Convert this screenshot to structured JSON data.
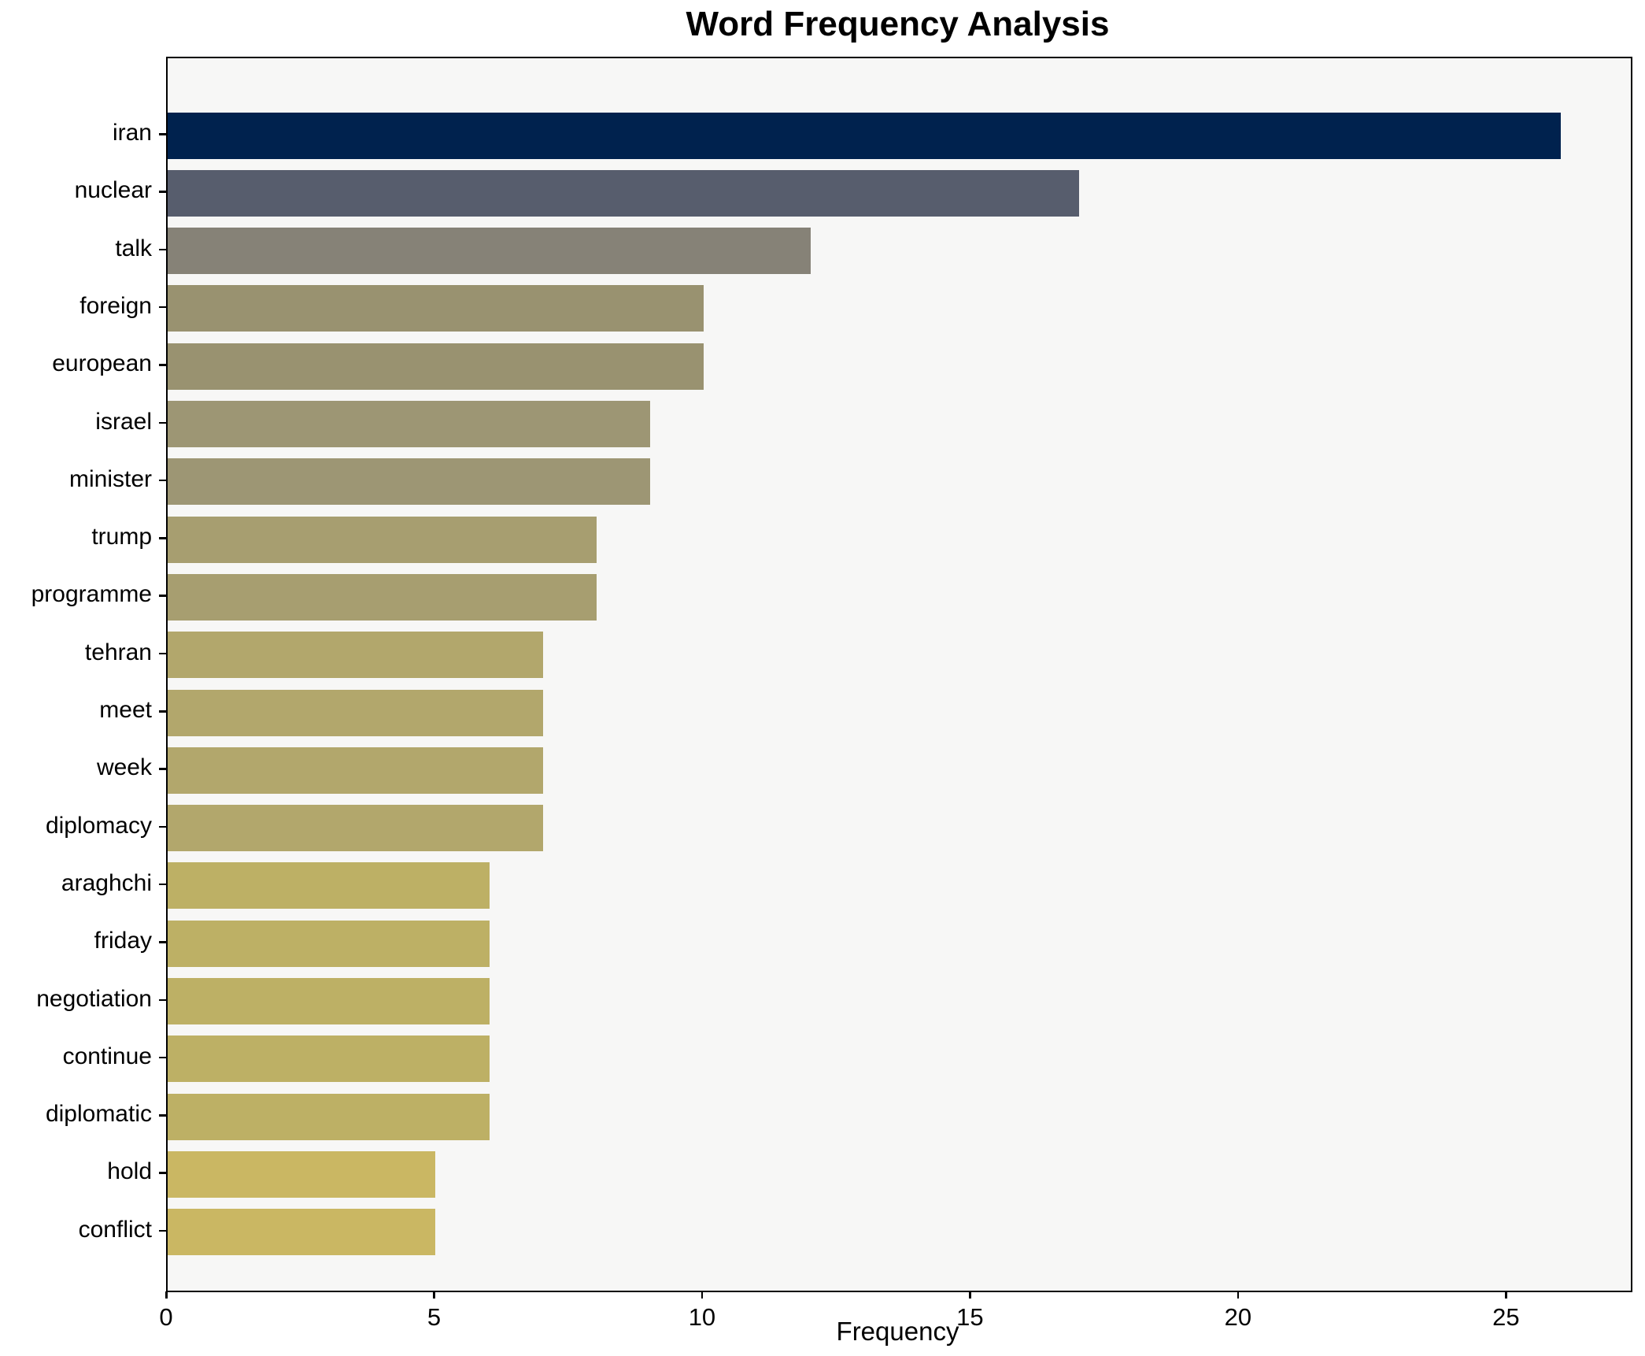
{
  "chart_data": {
    "type": "bar",
    "orientation": "horizontal",
    "title": "Word Frequency Analysis",
    "xlabel": "Frequency",
    "ylabel": "",
    "categories": [
      "iran",
      "nuclear",
      "talk",
      "foreign",
      "european",
      "israel",
      "minister",
      "trump",
      "programme",
      "tehran",
      "meet",
      "week",
      "diplomacy",
      "araghchi",
      "friday",
      "negotiation",
      "continue",
      "diplomatic",
      "hold",
      "conflict"
    ],
    "values": [
      26,
      17,
      12,
      10,
      10,
      9,
      9,
      8,
      8,
      7,
      7,
      7,
      7,
      6,
      6,
      6,
      6,
      6,
      5,
      5
    ],
    "bar_colors": [
      "#00224e",
      "#575d6d",
      "#868277",
      "#999270",
      "#999270",
      "#9d9674",
      "#9d9674",
      "#a79e70",
      "#a79e70",
      "#b2a76c",
      "#b2a76c",
      "#b2a76c",
      "#b2a76c",
      "#bdb065",
      "#bdb065",
      "#bdb065",
      "#bdb065",
      "#bdb065",
      "#cab763",
      "#cab763"
    ],
    "xticks": [
      0,
      5,
      10,
      15,
      20,
      25
    ],
    "xlim": [
      0,
      27.3
    ],
    "grid": false,
    "legend": "none",
    "plot_bg": "#f7f7f6",
    "figure_bg": "#ffffff",
    "spine_color": "#000000"
  }
}
